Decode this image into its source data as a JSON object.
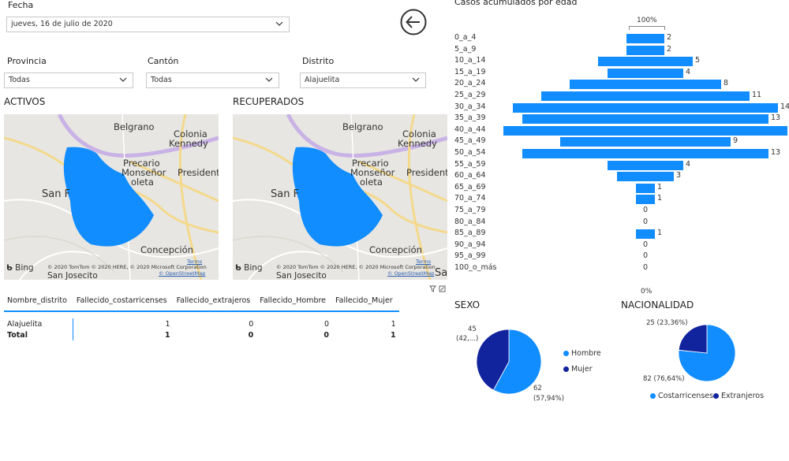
{
  "filters": {
    "date": {
      "label": "Fecha",
      "value": "jueves, 16 de julio de 2020"
    },
    "provincia": {
      "label": "Provincia",
      "value": "Todas"
    },
    "canton": {
      "label": "Cantón",
      "value": "Todas"
    },
    "distrito": {
      "label": "Distrito",
      "value": "Alajuelita"
    }
  },
  "maps": {
    "activos": {
      "title": "ACTIVOS"
    },
    "recuperados": {
      "title": "RECUPERADOS"
    },
    "labels": {
      "belgrano": "Belgrano",
      "colonia": "Colonia",
      "kennedy": "Kennedy",
      "precario": "Precario",
      "monsenor": "Monseñor",
      "oleta": "oleta",
      "presidente": "Presidente",
      "san": "San F",
      "concepcion": "Concepción",
      "sanjosecito": "San Josecito",
      "san_right": "San"
    },
    "attribution": "© 2020 TomTom © 2020 HERE, © 2020 Microsoft Corporation",
    "terms": "Terms",
    "osm": "© OpenStreetMap",
    "bing": "Bing"
  },
  "table": {
    "headers": [
      "Nombre_distrito",
      "Fallecido_costarricenses",
      "Fallecido_extrajeros",
      "Fallecido_Hombre",
      "Fallecido_Mujer"
    ],
    "rows": [
      [
        "Alajuelita",
        "1",
        "0",
        "0",
        "1"
      ]
    ],
    "total": [
      "Total",
      "1",
      "0",
      "0",
      "1"
    ]
  },
  "chart_data": [
    {
      "type": "bar",
      "orientation": "horizontal-centered",
      "title": "Casos acumulados por edad",
      "axis_top_label": "100%",
      "axis_bottom_label": "0%",
      "categories": [
        "0_a_4",
        "5_a_9",
        "10_a_14",
        "15_a_19",
        "20_a_24",
        "25_a_29",
        "30_a_34",
        "35_a_39",
        "40_a_44",
        "45_a_49",
        "50_a_54",
        "55_a_59",
        "60_a_64",
        "65_a_69",
        "70_a_74",
        "75_a_79",
        "80_a_84",
        "85_a_89",
        "90_a_94",
        "95_a_99",
        "100_o_más"
      ],
      "values": [
        2,
        2,
        5,
        4,
        8,
        11,
        14,
        13,
        15,
        9,
        13,
        4,
        3,
        1,
        1,
        0,
        0,
        1,
        0,
        0,
        0
      ],
      "value_labels": [
        "2",
        "2",
        "5",
        "4",
        "8",
        "11",
        "14",
        "13",
        "",
        "9",
        "13",
        "4",
        "3",
        "1",
        "1",
        "0",
        "0",
        "1",
        "0",
        "0",
        "0"
      ],
      "color": "#118DFF"
    },
    {
      "type": "pie",
      "title": "SEXO",
      "labels": [
        "Hombre",
        "Mujer"
      ],
      "values": [
        62,
        45
      ],
      "slice_labels": [
        [
          "62",
          "(57,94%)"
        ],
        [
          "45",
          "(42,...)"
        ]
      ],
      "colors": [
        "#118DFF",
        "#12239E"
      ]
    },
    {
      "type": "pie",
      "title": "NACIONALIDAD",
      "labels": [
        "Costarricenses",
        "Extranjeros"
      ],
      "values": [
        82,
        25
      ],
      "slice_labels": [
        [
          "82 (76,64%)"
        ],
        [
          "25 (23,36%)"
        ]
      ],
      "colors": [
        "#118DFF",
        "#12239E"
      ]
    }
  ]
}
